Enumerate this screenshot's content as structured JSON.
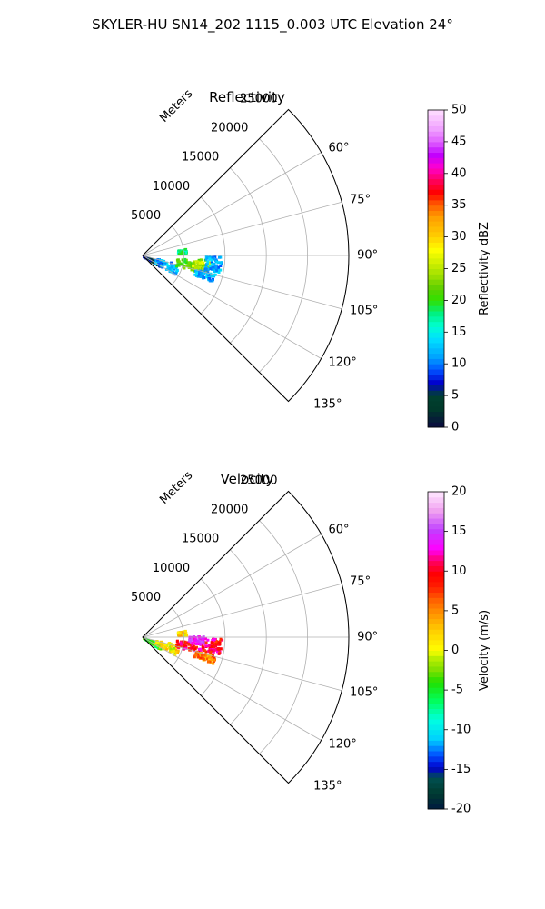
{
  "figure": {
    "suptitle": "SKYLER-HU  SN14_202  1115_0.003 UTC Elevation 24°"
  },
  "chart_data": [
    {
      "type": "polar-sector",
      "title": "Reflectivity",
      "radial_axis_label": "Meters",
      "radial_ticks": [
        5000,
        10000,
        15000,
        20000,
        25000
      ],
      "rlim": [
        0,
        25000
      ],
      "theta_range_deg": [
        45,
        135
      ],
      "theta_ticks_deg": [
        60,
        75,
        90,
        105,
        120,
        135
      ],
      "theta_tick_labels": [
        "60°",
        "75°",
        "90°",
        "105°",
        "120°",
        "135°"
      ],
      "grid": true,
      "colorbar": {
        "label": "Reflectivity dBZ",
        "range": [
          0,
          50
        ],
        "ticks": [
          0,
          5,
          10,
          15,
          20,
          25,
          30,
          35,
          40,
          45,
          50
        ],
        "colormap": "pyart_NWSRef"
      },
      "echo_regions": [
        {
          "az": [
            108,
            122
          ],
          "r": [
            0,
            2500
          ],
          "value": 5
        },
        {
          "az": [
            100,
            120
          ],
          "r": [
            1500,
            4500
          ],
          "value": 12
        },
        {
          "az": [
            93,
            106
          ],
          "r": [
            4000,
            7500
          ],
          "value": 22
        },
        {
          "az": [
            95,
            104
          ],
          "r": [
            6000,
            8000
          ],
          "value": 25
        },
        {
          "az": [
            90,
            102
          ],
          "r": [
            7500,
            9500
          ],
          "value": 12
        },
        {
          "az": [
            80,
            86
          ],
          "r": [
            4200,
            5200
          ],
          "value": 18
        },
        {
          "az": [
            104,
            110
          ],
          "r": [
            6500,
            9000
          ],
          "value": 12
        }
      ]
    },
    {
      "type": "polar-sector",
      "title": "Velocity",
      "radial_axis_label": "Meters",
      "radial_ticks": [
        5000,
        10000,
        15000,
        20000,
        25000
      ],
      "rlim": [
        0,
        25000
      ],
      "theta_range_deg": [
        45,
        135
      ],
      "theta_ticks_deg": [
        60,
        75,
        90,
        105,
        120,
        135
      ],
      "theta_tick_labels": [
        "60°",
        "75°",
        "90°",
        "105°",
        "120°",
        "135°"
      ],
      "grid": true,
      "colorbar": {
        "label": "Velocity (m/s)",
        "range": [
          -20,
          20
        ],
        "ticks": [
          -20,
          -15,
          -10,
          -5,
          0,
          5,
          10,
          15,
          20
        ],
        "colormap": "pyart_BuDRd18"
      },
      "echo_regions": [
        {
          "az": [
            108,
            124
          ],
          "r": [
            0,
            2500
          ],
          "value": -5
        },
        {
          "az": [
            100,
            118
          ],
          "r": [
            1500,
            4500
          ],
          "value": 1
        },
        {
          "az": [
            93,
            106
          ],
          "r": [
            4000,
            7500
          ],
          "value": 10
        },
        {
          "az": [
            88,
            96
          ],
          "r": [
            5500,
            7500
          ],
          "value": 14
        },
        {
          "az": [
            90,
            102
          ],
          "r": [
            7500,
            9500
          ],
          "value": 10
        },
        {
          "az": [
            80,
            86
          ],
          "r": [
            4200,
            5200
          ],
          "value": 2
        },
        {
          "az": [
            104,
            110
          ],
          "r": [
            6500,
            9000
          ],
          "value": 5
        }
      ]
    }
  ]
}
